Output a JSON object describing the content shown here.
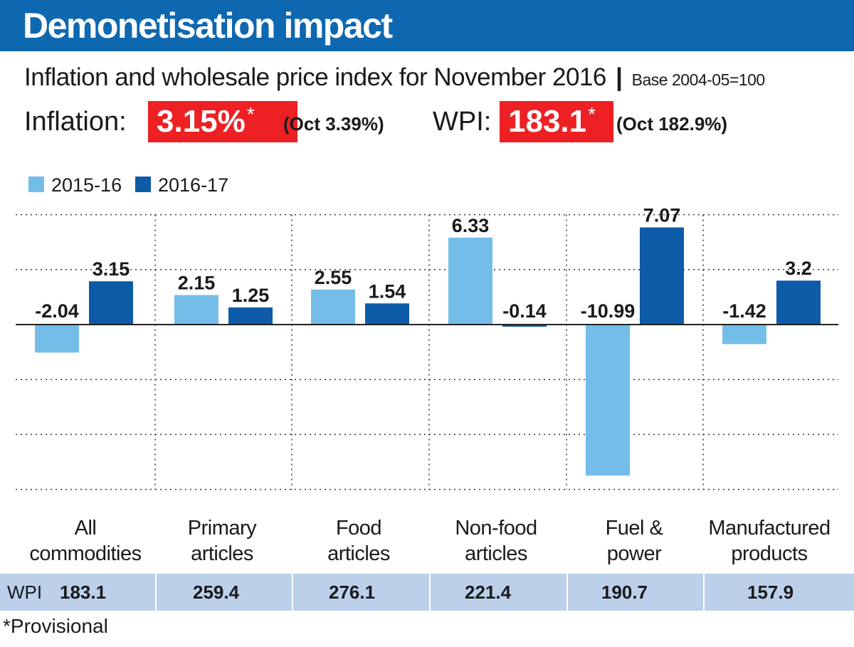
{
  "header": {
    "title": "Demonetisation impact",
    "subtitle": "Inflation and wholesale price index for November 2016",
    "subtitle_separator": "|",
    "base_note": "Base 2004-05=100"
  },
  "kpis": {
    "inflation": {
      "label": "Inflation:",
      "value": "3.15%",
      "mark": "*",
      "previous": "(Oct 3.39%)"
    },
    "wpi": {
      "label": "WPI:",
      "value": "183.1",
      "mark": "*",
      "previous": "(Oct 182.9%)"
    }
  },
  "chart_data": {
    "type": "bar",
    "categories": [
      "All commodities",
      "Primary articles",
      "Food articles",
      "Non-food articles",
      "Fuel & power",
      "Manufactured products"
    ],
    "category_lines": [
      [
        "All",
        "commodities"
      ],
      [
        "Primary",
        "articles"
      ],
      [
        "Food",
        "articles"
      ],
      [
        "Non-food",
        "articles"
      ],
      [
        "Fuel &",
        "power"
      ],
      [
        "Manufactured",
        "products"
      ]
    ],
    "series": [
      {
        "name": "2015-16",
        "color": "#74bde9",
        "values": [
          -2.04,
          2.15,
          2.55,
          6.33,
          -10.99,
          -1.42
        ],
        "labels": [
          "-2.04",
          "2.15",
          "2.55",
          "6.33",
          "-10.99",
          "-1.42"
        ]
      },
      {
        "name": "2016-17",
        "color": "#0e5ba8",
        "values": [
          3.15,
          1.25,
          1.54,
          -0.14,
          7.07,
          3.2
        ],
        "labels": [
          "3.15",
          "1.25",
          "1.54",
          "-0.14",
          "7.07",
          "3.2"
        ]
      }
    ],
    "ylim": [
      -12,
      8
    ],
    "grid": true,
    "legend": "top-left"
  },
  "wpi_row": {
    "label": "WPI",
    "values": [
      "183.1",
      "259.4",
      "276.1",
      "221.4",
      "190.7",
      "157.9"
    ]
  },
  "footnote": "*Provisional"
}
